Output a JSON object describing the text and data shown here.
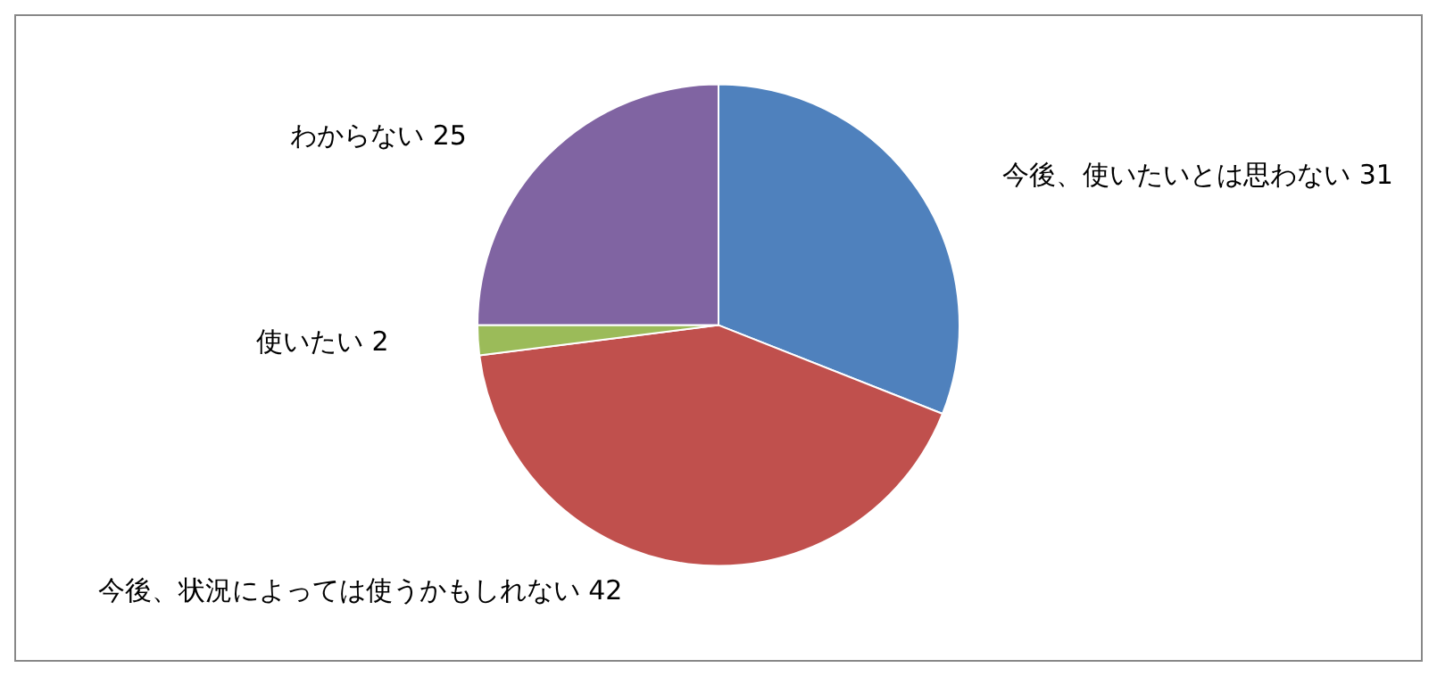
{
  "chart_data": {
    "type": "pie",
    "categories": [
      "今後、使いたいとは思わない",
      "今後、状況によっては使うかもしれない",
      "使いたい",
      "わからない"
    ],
    "values": [
      31,
      42,
      2,
      25
    ],
    "colors": [
      "#4f81bd",
      "#c0504d",
      "#9bbb59",
      "#8064a2"
    ],
    "data_labels": true,
    "legend": false
  }
}
